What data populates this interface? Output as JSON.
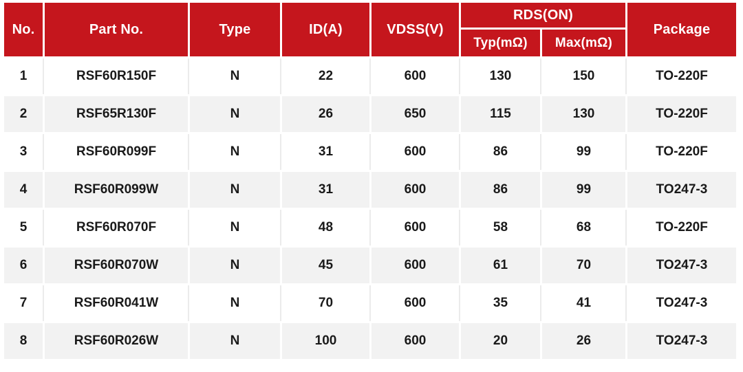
{
  "table": {
    "header": {
      "no": "No.",
      "part_no": "Part No.",
      "type": "Type",
      "id": "ID(A)",
      "vdss": "VDSS(V)",
      "rds_group": "RDS(ON)",
      "rds_typ": "Typ(mΩ)",
      "rds_max": "Max(mΩ)",
      "package": "Package"
    },
    "rows": [
      {
        "no": "1",
        "part_no": "RSF60R150F",
        "type": "N",
        "id": "22",
        "vdss": "600",
        "rds_typ": "130",
        "rds_max": "150",
        "package": "TO-220F"
      },
      {
        "no": "2",
        "part_no": "RSF65R130F",
        "type": "N",
        "id": "26",
        "vdss": "650",
        "rds_typ": "115",
        "rds_max": "130",
        "package": "TO-220F"
      },
      {
        "no": "3",
        "part_no": "RSF60R099F",
        "type": "N",
        "id": "31",
        "vdss": "600",
        "rds_typ": "86",
        "rds_max": "99",
        "package": "TO-220F"
      },
      {
        "no": "4",
        "part_no": "RSF60R099W",
        "type": "N",
        "id": "31",
        "vdss": "600",
        "rds_typ": "86",
        "rds_max": "99",
        "package": "TO247-3"
      },
      {
        "no": "5",
        "part_no": "RSF60R070F",
        "type": "N",
        "id": "48",
        "vdss": "600",
        "rds_typ": "58",
        "rds_max": "68",
        "package": "TO-220F"
      },
      {
        "no": "6",
        "part_no": "RSF60R070W",
        "type": "N",
        "id": "45",
        "vdss": "600",
        "rds_typ": "61",
        "rds_max": "70",
        "package": "TO247-3"
      },
      {
        "no": "7",
        "part_no": "RSF60R041W",
        "type": "N",
        "id": "70",
        "vdss": "600",
        "rds_typ": "35",
        "rds_max": "41",
        "package": "TO247-3"
      },
      {
        "no": "8",
        "part_no": "RSF60R026W",
        "type": "N",
        "id": "100",
        "vdss": "600",
        "rds_typ": "20",
        "rds_max": "26",
        "package": "TO247-3"
      }
    ],
    "colors": {
      "header_bg": "#C5161D",
      "header_text": "#FFFFFF",
      "stripe_bg": "#F2F2F2",
      "row_bg": "#FFFFFF",
      "body_text": "#1A1A1A"
    }
  }
}
